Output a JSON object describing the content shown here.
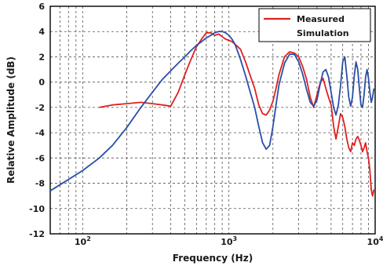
{
  "chart_data": {
    "type": "line",
    "title": "",
    "xlabel": "Frequency (Hz)",
    "ylabel": "Relative Amplitude (dB)",
    "xscale": "log",
    "xlim": [
      60,
      10000
    ],
    "ylim": [
      -12,
      6
    ],
    "x_ticks": [
      100,
      1000,
      10000
    ],
    "x_tick_labels": [
      "10^2",
      "10^3",
      "10^4"
    ],
    "y_ticks": [
      6,
      4,
      2,
      0,
      -2,
      -4,
      -6,
      -8,
      -10,
      -12
    ],
    "y_tick_labels": [
      "6",
      "4",
      "2",
      "0",
      "-2",
      "-4",
      "-6",
      "-8",
      "-10",
      "-12"
    ],
    "grid": true,
    "legend": {
      "placement": "top-right",
      "entries": [
        "Measured",
        "Simulation"
      ]
    },
    "series": [
      {
        "name": "Measured",
        "color": "#e02020",
        "x": [
          130,
          160,
          200,
          250,
          300,
          350,
          400,
          450,
          500,
          550,
          600,
          650,
          700,
          750,
          800,
          850,
          900,
          950,
          1000,
          1050,
          1100,
          1150,
          1200,
          1300,
          1400,
          1500,
          1600,
          1700,
          1800,
          1900,
          2000,
          2100,
          2200,
          2400,
          2600,
          2800,
          3000,
          3200,
          3400,
          3600,
          3800,
          4000,
          4200,
          4400,
          4600,
          4800,
          5000,
          5200,
          5400,
          5600,
          5800,
          6000,
          6200,
          6400,
          6600,
          6800,
          7000,
          7200,
          7400,
          7600,
          7800,
          8000,
          8200,
          8400,
          8600,
          8800,
          9000,
          9200,
          9400,
          9600,
          9800
        ],
        "y": [
          -2.0,
          -1.8,
          -1.7,
          -1.6,
          -1.7,
          -1.8,
          -1.9,
          -0.8,
          0.6,
          1.8,
          2.8,
          3.4,
          3.9,
          3.9,
          3.7,
          3.8,
          3.6,
          3.4,
          3.3,
          3.2,
          3.0,
          2.8,
          2.6,
          1.6,
          0.5,
          -0.5,
          -1.8,
          -2.5,
          -2.6,
          -2.2,
          -1.5,
          -0.5,
          0.6,
          2.0,
          2.4,
          2.3,
          2.0,
          1.2,
          0.2,
          -1.2,
          -2.0,
          -1.0,
          -0.1,
          0.3,
          -0.5,
          -1.2,
          -1.8,
          -3.5,
          -4.5,
          -3.5,
          -2.5,
          -2.8,
          -3.5,
          -4.5,
          -5.2,
          -5.5,
          -4.8,
          -5.0,
          -4.5,
          -4.3,
          -4.6,
          -5.0,
          -5.5,
          -5.2,
          -4.8,
          -5.5,
          -6.0,
          -7.0,
          -8.5,
          -9.0,
          -8.5
        ]
      },
      {
        "name": "Simulation",
        "color": "#2a4fa8",
        "x": [
          60,
          80,
          100,
          130,
          160,
          200,
          250,
          300,
          350,
          400,
          450,
          500,
          550,
          600,
          650,
          700,
          750,
          800,
          850,
          900,
          950,
          1000,
          1050,
          1100,
          1150,
          1200,
          1300,
          1400,
          1500,
          1600,
          1700,
          1800,
          1900,
          2000,
          2100,
          2200,
          2400,
          2600,
          2800,
          3000,
          3200,
          3400,
          3600,
          3800,
          4000,
          4200,
          4400,
          4600,
          4800,
          5000,
          5200,
          5400,
          5600,
          5800,
          6000,
          6200,
          6400,
          6600,
          6800,
          7000,
          7200,
          7400,
          7600,
          7800,
          8000,
          8200,
          8400,
          8600,
          8800,
          9000,
          9200,
          9400,
          9600,
          9800
        ],
        "y": [
          -8.6,
          -7.7,
          -7.0,
          -6.0,
          -5.0,
          -3.6,
          -2.0,
          -0.8,
          0.2,
          0.9,
          1.5,
          2.0,
          2.5,
          2.9,
          3.2,
          3.5,
          3.7,
          3.9,
          4.0,
          4.0,
          3.9,
          3.7,
          3.4,
          3.0,
          2.4,
          1.8,
          0.5,
          -0.8,
          -2.0,
          -3.5,
          -4.8,
          -5.3,
          -5.0,
          -3.5,
          -1.8,
          -0.2,
          1.5,
          2.2,
          2.2,
          1.6,
          0.6,
          -0.6,
          -1.6,
          -1.9,
          -1.4,
          -0.2,
          0.8,
          1.0,
          0.4,
          -0.8,
          -2.0,
          -2.6,
          -1.8,
          -0.3,
          1.6,
          2.0,
          0.5,
          -1.2,
          -1.9,
          -1.2,
          0.5,
          1.6,
          1.0,
          -0.5,
          -1.8,
          -2.0,
          -1.0,
          0.4,
          1.0,
          0.3,
          -0.8,
          -1.6,
          -1.2,
          -0.5
        ]
      }
    ]
  }
}
